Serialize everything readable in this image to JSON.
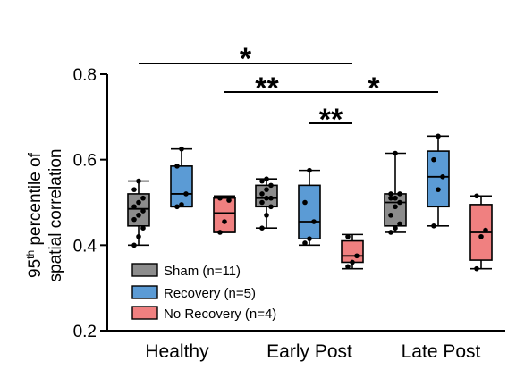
{
  "chart_data": {
    "type": "box",
    "ylabel_line1_base": "95",
    "ylabel_line1_sup": "th",
    "ylabel_line1_rest": " percentile of",
    "ylabel_line2": "spatial correlation",
    "ylim": [
      0.2,
      0.8
    ],
    "yticks": [
      "0.8",
      "0.6",
      "0.4",
      "0.2"
    ],
    "categories": [
      "Healthy",
      "Early Post",
      "Late Post"
    ],
    "legend_position": "bottom-left",
    "series": [
      {
        "name": "Sham (n=11)",
        "color": "#8c8c8c",
        "boxes": [
          {
            "min": 0.4,
            "q1": 0.445,
            "median": 0.485,
            "q3": 0.52,
            "max": 0.55,
            "points": [
              0.4,
              0.42,
              0.44,
              0.46,
              0.47,
              0.48,
              0.49,
              0.5,
              0.51,
              0.53,
              0.55
            ]
          },
          {
            "min": 0.44,
            "q1": 0.49,
            "median": 0.51,
            "q3": 0.54,
            "max": 0.555,
            "points": [
              0.44,
              0.47,
              0.49,
              0.5,
              0.51,
              0.51,
              0.52,
              0.53,
              0.54,
              0.55,
              0.555
            ]
          },
          {
            "min": 0.43,
            "q1": 0.445,
            "median": 0.5,
            "q3": 0.52,
            "max": 0.615,
            "points": [
              0.43,
              0.44,
              0.45,
              0.47,
              0.49,
              0.5,
              0.51,
              0.51,
              0.52,
              0.52,
              0.615
            ]
          }
        ]
      },
      {
        "name": "Recovery (n=5)",
        "color": "#5b9bd5",
        "boxes": [
          {
            "min": 0.49,
            "q1": 0.49,
            "median": 0.52,
            "q3": 0.585,
            "max": 0.625,
            "points": [
              0.49,
              0.495,
              0.52,
              0.585,
              0.625
            ]
          },
          {
            "min": 0.4,
            "q1": 0.415,
            "median": 0.455,
            "q3": 0.54,
            "max": 0.575,
            "points": [
              0.405,
              0.415,
              0.455,
              0.5,
              0.575
            ]
          },
          {
            "min": 0.445,
            "q1": 0.49,
            "median": 0.56,
            "q3": 0.62,
            "max": 0.655,
            "points": [
              0.445,
              0.53,
              0.56,
              0.6,
              0.655
            ]
          }
        ]
      },
      {
        "name": "No Recovery (n=4)",
        "color": "#f08080",
        "boxes": [
          {
            "min": 0.43,
            "q1": 0.43,
            "median": 0.475,
            "q3": 0.51,
            "max": 0.515,
            "points": [
              0.43,
              0.455,
              0.505,
              0.51
            ]
          },
          {
            "min": 0.345,
            "q1": 0.36,
            "median": 0.375,
            "q3": 0.41,
            "max": 0.425,
            "points": [
              0.35,
              0.36,
              0.375,
              0.42
            ]
          },
          {
            "min": 0.345,
            "q1": 0.365,
            "median": 0.43,
            "q3": 0.495,
            "max": 0.515,
            "points": [
              0.345,
              0.42,
              0.435,
              0.515
            ]
          }
        ]
      }
    ],
    "significance": [
      {
        "label": "*",
        "from": {
          "category": 0,
          "series": 0
        },
        "to": {
          "category": 1,
          "series": 2
        }
      },
      {
        "label": "**",
        "from": {
          "category": 0,
          "series": 2
        },
        "to": {
          "category": 1,
          "series": 1
        }
      },
      {
        "label": "*",
        "from": {
          "category": 1,
          "series": 1
        },
        "to": {
          "category": 2,
          "series": 1
        }
      },
      {
        "label": "**",
        "from": {
          "category": 1,
          "series": 1
        },
        "to": {
          "category": 1,
          "series": 2
        }
      }
    ]
  }
}
